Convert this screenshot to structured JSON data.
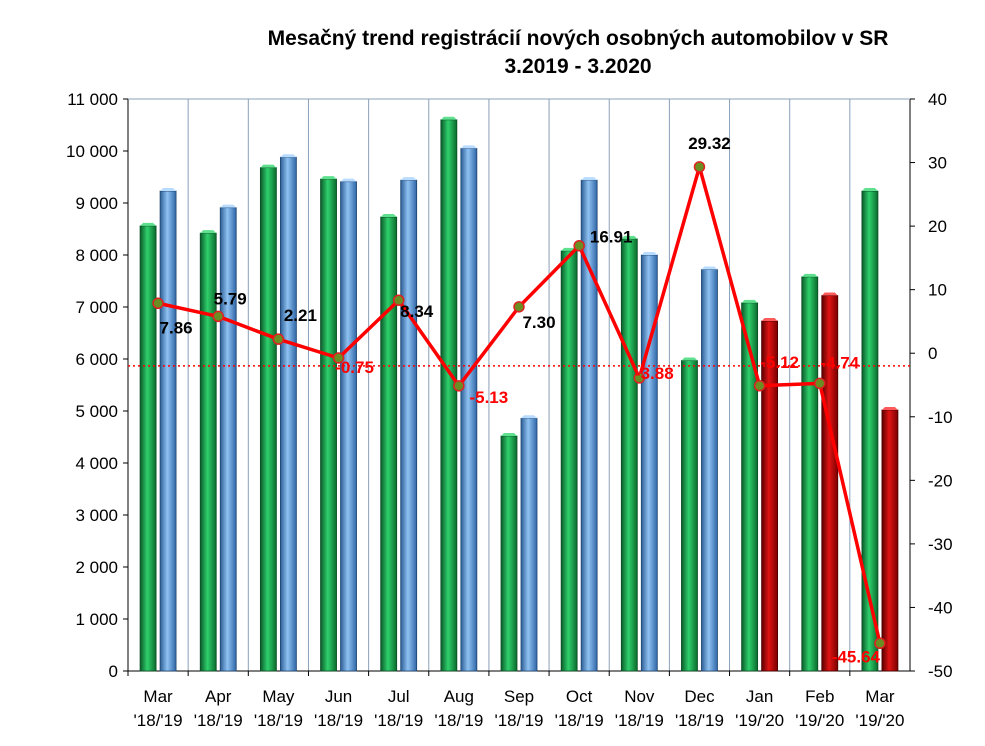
{
  "chart_data": {
    "type": "bar",
    "title": "Mesačný trend registrácií nových osobných automobilov v SR",
    "subtitle": "3.2019 - 3.2020",
    "categories": [
      {
        "month": "Mar",
        "period": "'18/'19"
      },
      {
        "month": "Apr",
        "period": "'18/'19"
      },
      {
        "month": "May",
        "period": "'18/'19"
      },
      {
        "month": "Jun",
        "period": "'18/'19"
      },
      {
        "month": "Jul",
        "period": "'18/'19"
      },
      {
        "month": "Aug",
        "period": "'18/'19"
      },
      {
        "month": "Sep",
        "period": "'18/'19"
      },
      {
        "month": "Oct",
        "period": "'18/'19"
      },
      {
        "month": "Nov",
        "period": "'18/'19"
      },
      {
        "month": "Dec",
        "period": "'18/'19"
      },
      {
        "month": "Jan",
        "period": "'19/'20"
      },
      {
        "month": "Feb",
        "period": "'19/'20"
      },
      {
        "month": "Mar",
        "period": "'19/'20"
      }
    ],
    "series": [
      {
        "values": [
          8560,
          8420,
          9680,
          9460,
          8730,
          10600,
          4520,
          8080,
          8310,
          5970,
          7080,
          7580,
          9230
        ],
        "color": "#1aa050"
      },
      {
        "values": [
          9230,
          8910,
          9880,
          9410,
          9440,
          10050,
          4860,
          9440,
          8000,
          7720,
          6730,
          7220,
          5020
        ],
        "color": "#4a86c8",
        "alt_color": "#c00000",
        "alt_color_from_index": 10
      },
      {
        "values": [
          7.86,
          5.79,
          2.21,
          -0.75,
          8.34,
          -5.13,
          7.3,
          16.91,
          -3.88,
          29.32,
          -5.12,
          -4.74,
          -45.64
        ],
        "labels": [
          "7.86",
          "5.79",
          "2.21",
          "-0.75",
          "8.34",
          "-5.13",
          "7.30",
          "16.91",
          "-3.88",
          "29.32",
          "-5.12",
          "-4.74",
          "-45.64"
        ],
        "axis": "right",
        "type": "line",
        "color": "#ff0000",
        "marker_color": "#6b8e23"
      }
    ],
    "y_left": {
      "min": 0,
      "max": 11000,
      "step": 1000,
      "tick_labels": [
        "0",
        "1 000",
        "2 000",
        "3 000",
        "4 000",
        "5 000",
        "6 000",
        "7 000",
        "8 000",
        "9 000",
        "10 000",
        "11 000"
      ]
    },
    "y_right": {
      "min": -50,
      "max": 40,
      "step": 10,
      "tick_labels": [
        "-50",
        "-40",
        "-30",
        "-20",
        "-10",
        "0",
        "10",
        "20",
        "30",
        "40"
      ]
    },
    "reference_line": {
      "axis": "right",
      "value": -2,
      "style": "dotted",
      "color": "#ff0000"
    },
    "grid": "vertical",
    "legend": "none"
  }
}
